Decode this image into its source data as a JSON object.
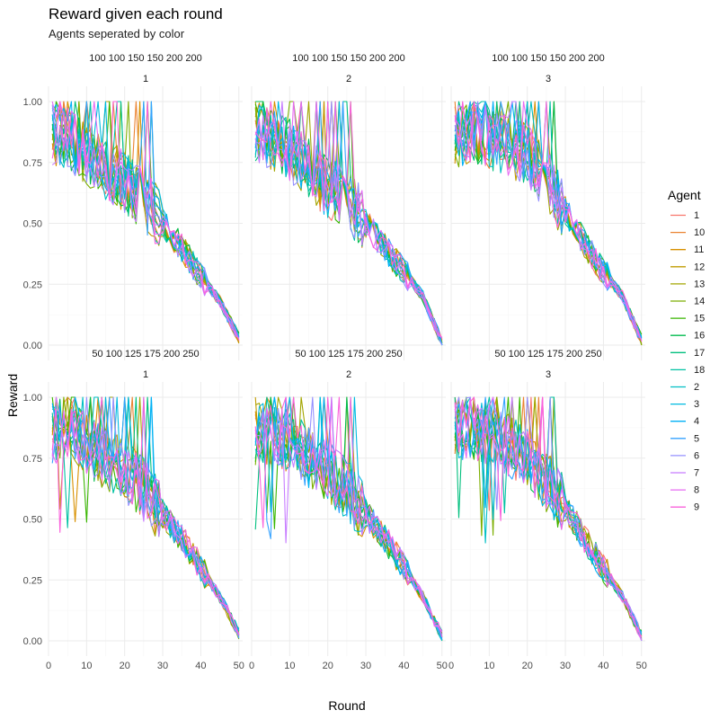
{
  "title": "Reward given each round",
  "subtitle": "Agents seperated by color",
  "ylabel": "Reward",
  "xlabel": "Round",
  "legend_title": "Agent",
  "rows": [
    {
      "strip_top": "100 100 150 150 200 200"
    },
    {
      "strip_top": "50 100 125 175 200 250"
    }
  ],
  "cols": [
    "1",
    "2",
    "3"
  ],
  "x_ticks": [
    "0",
    "10",
    "20",
    "30",
    "40",
    "50"
  ],
  "y_ticks": [
    "0.00",
    "0.25",
    "0.50",
    "0.75",
    "1.00"
  ],
  "agents": [
    "1",
    "10",
    "11",
    "12",
    "13",
    "14",
    "15",
    "16",
    "17",
    "18",
    "2",
    "3",
    "4",
    "5",
    "6",
    "7",
    "8",
    "9"
  ],
  "colors": [
    "#F8766D",
    "#EA8331",
    "#D89000",
    "#C09B00",
    "#A3A500",
    "#7CAE00",
    "#39B600",
    "#00BB4E",
    "#00BF7D",
    "#00C1A3",
    "#00BFC4",
    "#00BAE0",
    "#00B0F6",
    "#35A2FF",
    "#9590FF",
    "#C77CFF",
    "#E76BF3",
    "#FA62DB"
  ],
  "chart_data": {
    "type": "line",
    "xlim": [
      0,
      51
    ],
    "ylim": [
      0,
      1
    ],
    "x": [
      1,
      5,
      10,
      15,
      20,
      25,
      30,
      35,
      40,
      45,
      50
    ],
    "panels": [
      {
        "row": "100 100 150 150 200 200",
        "col": "1",
        "median": [
          0.87,
          0.85,
          0.78,
          0.72,
          0.67,
          0.6,
          0.5,
          0.4,
          0.28,
          0.18,
          0.03
        ]
      },
      {
        "row": "100 100 150 150 200 200",
        "col": "2",
        "median": [
          0.88,
          0.85,
          0.8,
          0.72,
          0.65,
          0.6,
          0.5,
          0.4,
          0.3,
          0.2,
          0.01
        ]
      },
      {
        "row": "100 100 150 150 200 200",
        "col": "3",
        "median": [
          0.85,
          0.88,
          0.85,
          0.82,
          0.78,
          0.68,
          0.55,
          0.42,
          0.3,
          0.2,
          0.02
        ]
      },
      {
        "row": "50 100 125 175 200 250",
        "col": "1",
        "median": [
          0.85,
          0.88,
          0.8,
          0.75,
          0.7,
          0.62,
          0.52,
          0.42,
          0.3,
          0.18,
          0.03
        ]
      },
      {
        "row": "50 100 125 175 200 250",
        "col": "2",
        "median": [
          0.85,
          0.85,
          0.82,
          0.75,
          0.7,
          0.62,
          0.52,
          0.42,
          0.3,
          0.18,
          0.02
        ]
      },
      {
        "row": "50 100 125 175 200 250",
        "col": "3",
        "median": [
          0.85,
          0.88,
          0.85,
          0.8,
          0.75,
          0.65,
          0.55,
          0.42,
          0.3,
          0.18,
          0.02
        ]
      }
    ]
  }
}
